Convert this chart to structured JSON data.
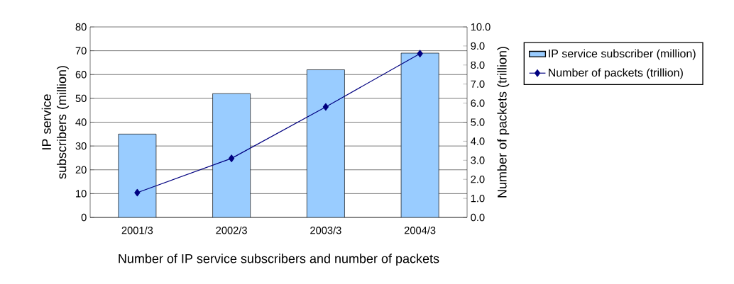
{
  "chart_data": {
    "type": "bar",
    "xlabel": "Number of IP service subscribers and number of packets",
    "ylabel": "IP service subscribers (million)",
    "y2label": "Number of packets (trillion)",
    "categories": [
      "2001/3",
      "2002/3",
      "2003/3",
      "2004/3"
    ],
    "series": [
      {
        "name": "IP service subscriber (million)",
        "color": "#99ccff",
        "values": [
          35,
          52,
          62,
          69
        ]
      },
      {
        "name": "Number of packets (trillion)",
        "type": "line",
        "axis": "y2",
        "color": "#000080",
        "marker": "diamond",
        "values": [
          1.3,
          3.1,
          5.8,
          8.6
        ]
      }
    ],
    "ylim": [
      0,
      80
    ],
    "yticks": [
      0,
      10,
      20,
      30,
      40,
      50,
      60,
      70,
      80
    ],
    "y2lim": [
      0,
      10
    ],
    "y2ticks": [
      {
        "value": 0,
        "label": "0.0"
      },
      {
        "value": 1,
        "label": "1.0"
      },
      {
        "value": 2,
        "label": "2.0"
      },
      {
        "value": 3,
        "label": "3.0"
      },
      {
        "value": 4,
        "label": "4.0"
      },
      {
        "value": 5,
        "label": "5.0"
      },
      {
        "value": 6,
        "label": "6.0"
      },
      {
        "value": 7,
        "label": "7.0"
      },
      {
        "value": 8,
        "label": "8.0"
      },
      {
        "value": 9,
        "label": "9.0"
      },
      {
        "value": 10,
        "label": "10.0"
      }
    ],
    "grid": "y",
    "legend": "right"
  }
}
